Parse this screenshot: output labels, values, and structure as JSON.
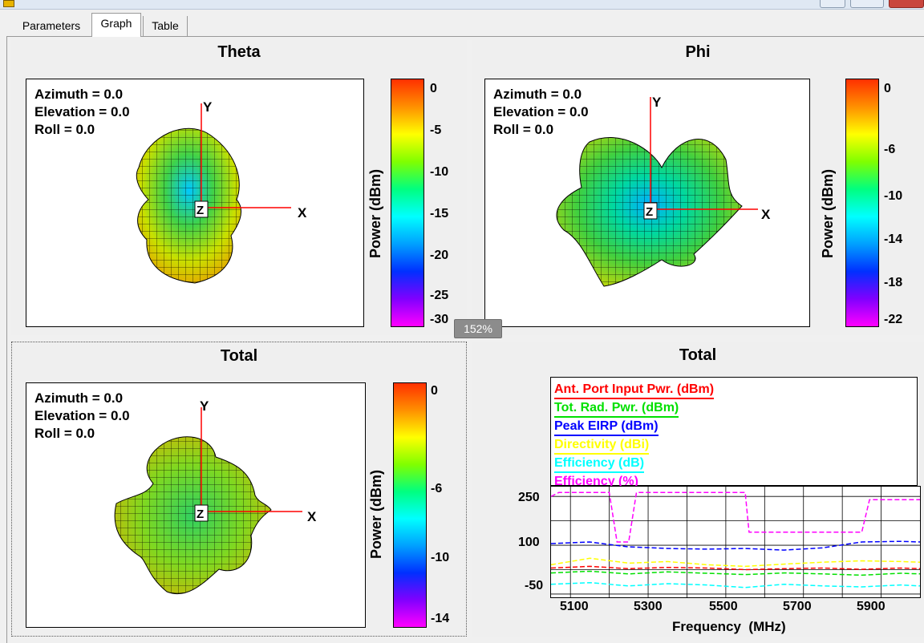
{
  "tabs": [
    {
      "label": "Parameters"
    },
    {
      "label": "Graph"
    },
    {
      "label": "Table"
    }
  ],
  "zoom_tooltip": "152%",
  "panels": {
    "theta": {
      "title": "Theta",
      "orientation": [
        "Azimuth = 0.0",
        "Elevation = 0.0",
        "Roll = 0.0"
      ],
      "axes": {
        "x": "X",
        "y": "Y",
        "z": "Z"
      },
      "colorbar": {
        "label": "Power  (dBm)",
        "ticks": [
          "0",
          "-5",
          "-10",
          "-15",
          "-20",
          "-25",
          "-30"
        ]
      }
    },
    "phi": {
      "title": "Phi",
      "orientation": [
        "Azimuth = 0.0",
        "Elevation = 0.0",
        "Roll = 0.0"
      ],
      "axes": {
        "x": "X",
        "y": "Y",
        "z": "Z"
      },
      "colorbar": {
        "label": "Power  (dBm)",
        "ticks": [
          "0",
          "-6",
          "-10",
          "-14",
          "-18",
          "-22"
        ]
      }
    },
    "total3d": {
      "title": "Total",
      "orientation": [
        "Azimuth = 0.0",
        "Elevation = 0.0",
        "Roll = 0.0"
      ],
      "axes": {
        "x": "X",
        "y": "Y",
        "z": "Z"
      },
      "colorbar": {
        "label": "Power  (dBm)",
        "ticks": [
          "0",
          "-6",
          "-10",
          "-14"
        ]
      }
    },
    "total_plot": {
      "title": "Total",
      "legend": [
        {
          "label": "Ant. Port Input Pwr. (dBm)",
          "color": "#ff0000"
        },
        {
          "label": "Tot. Rad. Pwr. (dBm)",
          "color": "#00e000"
        },
        {
          "label": "Peak EIRP (dBm)",
          "color": "#0000ff"
        },
        {
          "label": "Directivity (dBi)",
          "color": "#ffff00"
        },
        {
          "label": "Efficiency (dB)",
          "color": "#00ffff"
        },
        {
          "label": "Efficiency (%)",
          "color": "#ff00ff"
        }
      ],
      "xlabel": "Frequency  (MHz)",
      "xticks": [
        "5100",
        "5300",
        "5500",
        "5700",
        "5900"
      ],
      "yticks": [
        "250",
        "100",
        "-50"
      ]
    }
  },
  "chart_data": {
    "type": "line",
    "xlabel": "Frequency  (MHz)",
    "xlim": [
      5000,
      5950
    ],
    "ylim": [
      -60,
      280
    ],
    "xticks": [
      5100,
      5300,
      5500,
      5700,
      5900
    ],
    "yticks": [
      250,
      100,
      -50
    ],
    "grid": true,
    "series": [
      {
        "name": "Efficiency (%)",
        "color": "#ff00ff",
        "x": [
          5000,
          5020,
          5150,
          5170,
          5200,
          5220,
          5500,
          5510,
          5800,
          5820,
          5950
        ],
        "y": [
          250,
          262,
          262,
          110,
          110,
          262,
          262,
          140,
          140,
          240,
          240
        ]
      },
      {
        "name": "Ant. Port Input Pwr. (dBm)",
        "color": "#ff0000",
        "x": [
          5000,
          5100,
          5200,
          5300,
          5400,
          5500,
          5600,
          5700,
          5800,
          5900,
          5950
        ],
        "y": [
          30,
          35,
          28,
          32,
          30,
          25,
          28,
          30,
          26,
          30,
          28
        ]
      },
      {
        "name": "Tot. Rad. Pwr. (dBm)",
        "color": "#00e000",
        "x": [
          5000,
          5100,
          5200,
          5300,
          5400,
          5500,
          5600,
          5700,
          5800,
          5900,
          5950
        ],
        "y": [
          15,
          20,
          12,
          18,
          14,
          10,
          15,
          12,
          8,
          14,
          12
        ]
      },
      {
        "name": "Peak EIRP (dBm)",
        "color": "#0000ff",
        "x": [
          5000,
          5100,
          5200,
          5300,
          5400,
          5500,
          5600,
          5700,
          5800,
          5900,
          5950
        ],
        "y": [
          105,
          110,
          95,
          90,
          88,
          90,
          85,
          92,
          110,
          112,
          110
        ]
      },
      {
        "name": "Directivity (dBi)",
        "color": "#ffff00",
        "x": [
          5000,
          5100,
          5200,
          5300,
          5400,
          5500,
          5600,
          5700,
          5800,
          5900,
          5950
        ],
        "y": [
          40,
          60,
          45,
          50,
          40,
          35,
          42,
          48,
          52,
          50,
          48
        ]
      },
      {
        "name": "Efficiency (dB)",
        "color": "#00ffff",
        "x": [
          5000,
          5100,
          5200,
          5300,
          5400,
          5500,
          5600,
          5700,
          5800,
          5900,
          5950
        ],
        "y": [
          -20,
          -15,
          -25,
          -18,
          -22,
          -30,
          -20,
          -25,
          -28,
          -22,
          -25
        ]
      }
    ]
  },
  "colors": {
    "window_bg": "#f0f0f0",
    "plot_bg": "#ffffff",
    "tooltip_bg": "#8c8c8c",
    "axis_line": "#ff0000"
  }
}
